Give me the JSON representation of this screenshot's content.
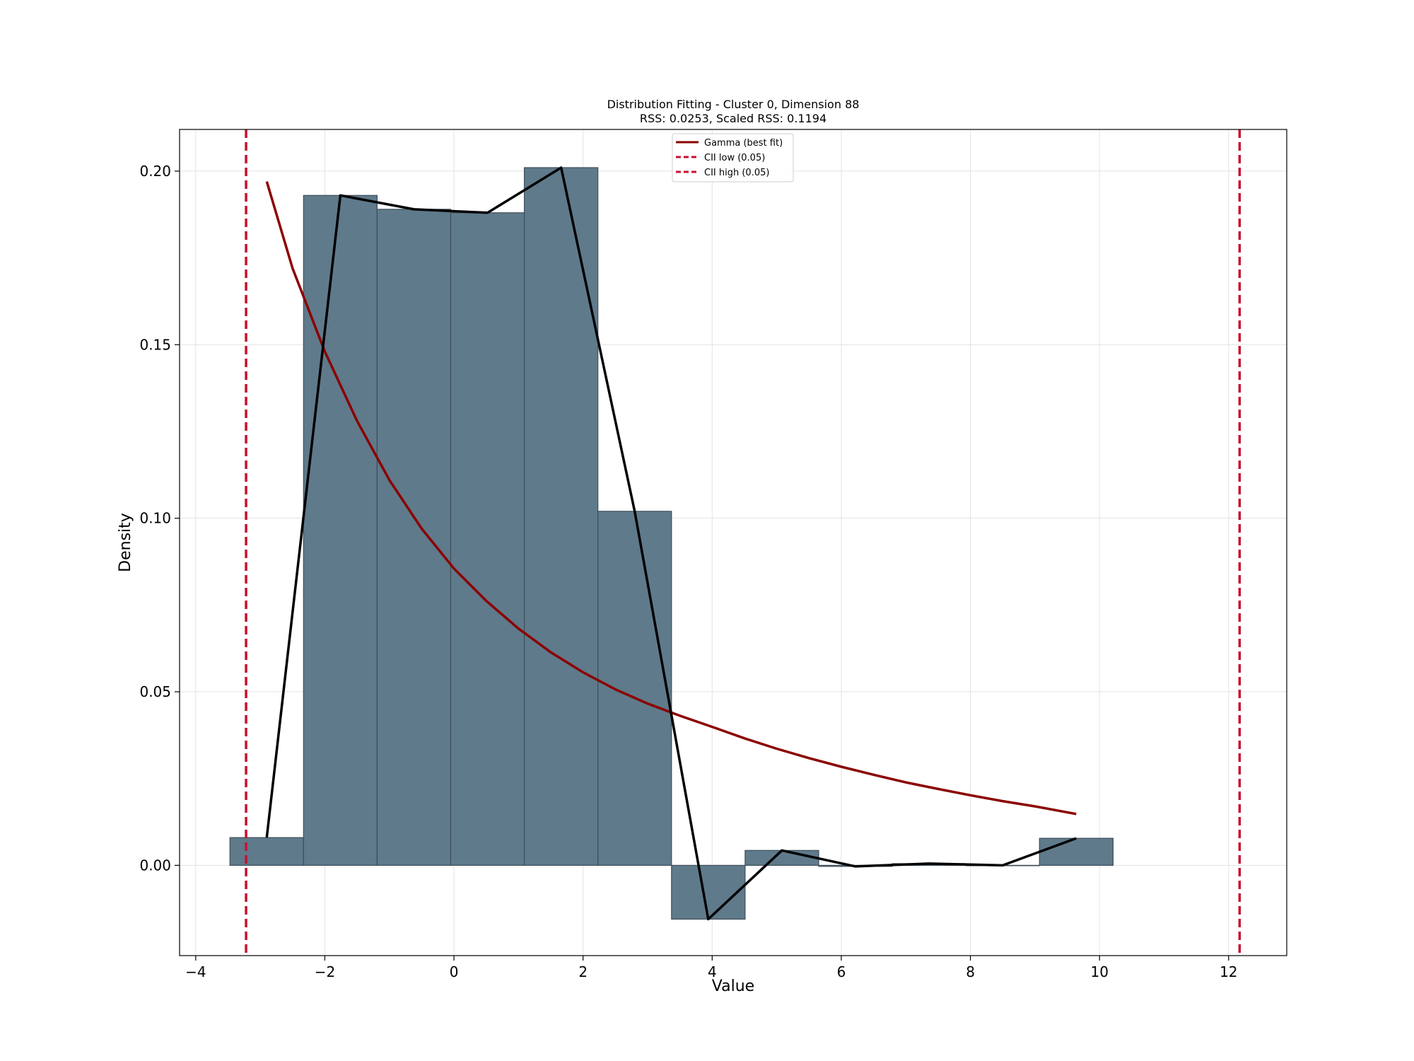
{
  "chart_data": {
    "type": "bar",
    "title": "Distribution Fitting - Cluster 0, Dimension 88",
    "subtitle": "RSS: 0.0253, Scaled RSS: 0.1194",
    "xlabel": "Value",
    "ylabel": "Density",
    "xlim": [
      -4.25,
      12.9
    ],
    "ylim": [
      -0.026,
      0.212
    ],
    "grid": true,
    "legend_position": "top-center",
    "x_ticks": [
      -4,
      -2,
      0,
      2,
      4,
      6,
      8,
      10,
      12
    ],
    "x_tick_labels": [
      "−4",
      "−2",
      "0",
      "2",
      "4",
      "6",
      "8",
      "10",
      "12"
    ],
    "y_ticks": [
      0.0,
      0.05,
      0.1,
      0.15,
      0.2
    ],
    "y_tick_labels": [
      "0.00",
      "0.05",
      "0.10",
      "0.15",
      "0.20"
    ],
    "histogram": {
      "bin_edges": [
        -3.47,
        -2.33,
        -1.19,
        -0.05,
        1.09,
        2.23,
        3.37,
        4.51,
        5.65,
        6.79,
        7.93,
        9.07,
        10.21
      ],
      "values": [
        0.008,
        0.193,
        0.189,
        0.188,
        0.201,
        0.102,
        -0.0155,
        0.0043,
        -0.0003,
        0.0005,
        0.0,
        0.0078
      ],
      "color": "#5f7a8b"
    },
    "series": [
      {
        "name": "Gamma (best fit)",
        "type": "line",
        "color": "#8b0000",
        "x": [
          -2.9,
          -2.5,
          -2.0,
          -1.5,
          -1.0,
          -0.5,
          0.0,
          0.5,
          1.0,
          1.5,
          2.0,
          2.5,
          3.0,
          3.5,
          4.0,
          4.5,
          5.0,
          5.5,
          6.0,
          6.5,
          7.0,
          7.5,
          8.0,
          8.5,
          9.0,
          9.64
        ],
        "y": [
          0.197,
          0.172,
          0.148,
          0.128,
          0.111,
          0.097,
          0.0855,
          0.0762,
          0.0682,
          0.0614,
          0.0556,
          0.0507,
          0.0466,
          0.0431,
          0.0399,
          0.0366,
          0.0336,
          0.0309,
          0.0284,
          0.0261,
          0.0239,
          0.022,
          0.0202,
          0.0185,
          0.017,
          0.0148
        ]
      },
      {
        "type": "line",
        "color": "#000000",
        "x": [
          -2.9,
          -1.76,
          -0.62,
          0.52,
          1.66,
          2.8,
          3.94,
          5.08,
          6.22,
          7.36,
          8.5,
          9.64
        ],
        "y": [
          0.008,
          0.193,
          0.189,
          0.188,
          0.201,
          0.102,
          -0.0155,
          0.0043,
          -0.0003,
          0.0005,
          0.0,
          0.0078
        ]
      }
    ],
    "vlines": [
      {
        "name": "CII low (0.05)",
        "x": -3.22,
        "color": "#c8102e",
        "style": "dashed"
      },
      {
        "name": "CII high (0.05)",
        "x": 12.17,
        "color": "#c8102e",
        "style": "dashed"
      }
    ]
  }
}
